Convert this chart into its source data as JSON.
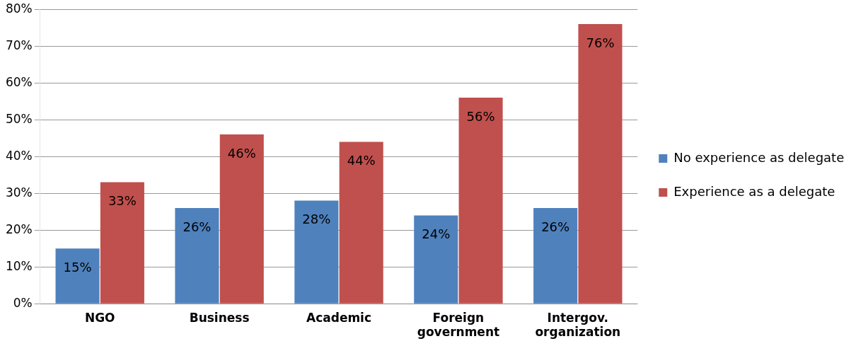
{
  "chart_data": {
    "type": "bar",
    "categories": [
      "NGO",
      "Business",
      "Academic",
      "Foreign government",
      "Intergov. organization"
    ],
    "series": [
      {
        "name": "No experience as delegate",
        "color": "#4f81bd",
        "values": [
          15,
          26,
          28,
          24,
          26
        ],
        "value_labels": [
          "15%",
          "26%",
          "28%",
          "24%",
          "26%"
        ]
      },
      {
        "name": "Experience as a delegate",
        "color": "#c0504d",
        "values": [
          33,
          46,
          44,
          56,
          76
        ],
        "value_labels": [
          "33%",
          "46%",
          "44%",
          "56%",
          "76%"
        ]
      }
    ],
    "ylim": [
      0,
      80
    ],
    "yticks": [
      {
        "value": 0,
        "label": "0%"
      },
      {
        "value": 10,
        "label": "10%"
      },
      {
        "value": 20,
        "label": "20%"
      },
      {
        "value": 30,
        "label": "30%"
      },
      {
        "value": 40,
        "label": "40%"
      },
      {
        "value": 50,
        "label": "50%"
      },
      {
        "value": 60,
        "label": "60%"
      },
      {
        "value": 70,
        "label": "70%"
      },
      {
        "value": 80,
        "label": "80%"
      }
    ],
    "grid": "y",
    "legend": "right"
  }
}
